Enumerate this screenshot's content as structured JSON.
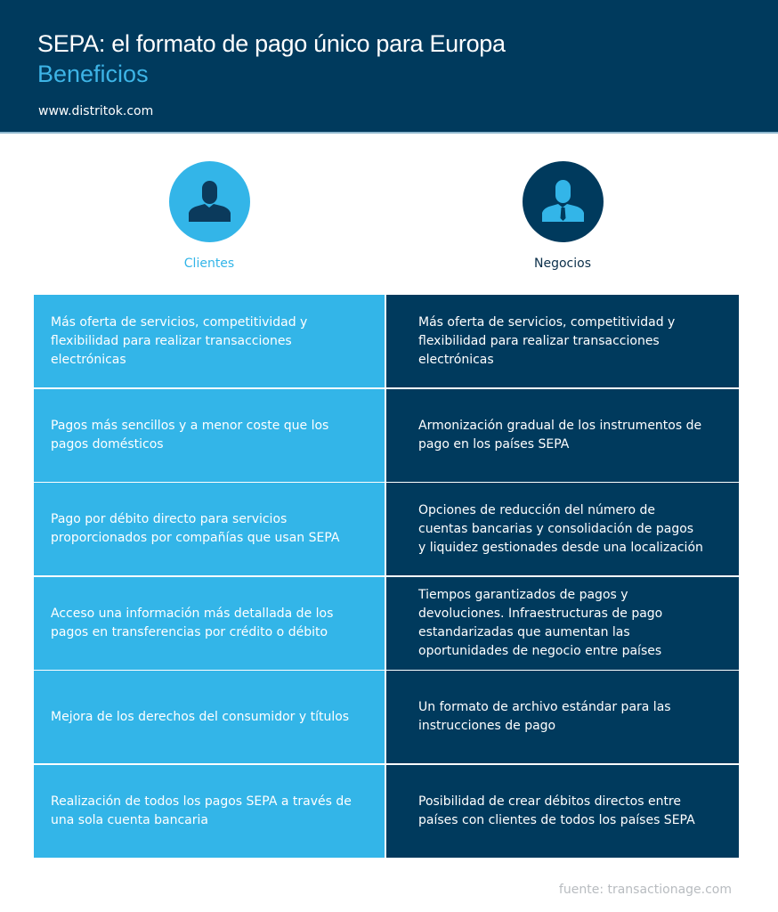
{
  "header": {
    "title": "SEPA: el formato de pago único para Europa",
    "subtitle": "Beneficios",
    "website": "www.distritok.com"
  },
  "columns": [
    {
      "label": "Clientes",
      "icon": "person-icon",
      "color": "#33b5e8"
    },
    {
      "label": "Negocios",
      "icon": "businessman-icon",
      "color": "#003a5d"
    }
  ],
  "rows": [
    {
      "clientes": "Más oferta de servicios, competitividad y flexibilidad para realizar transacciones electrónicas",
      "negocios": "Más oferta de servicios, competitividad y flexibilidad para realizar transacciones electrónicas"
    },
    {
      "clientes": "Pagos más sencillos y a menor coste que los pagos domésticos",
      "negocios": "Armonización gradual de los instrumentos de pago en los países SEPA"
    },
    {
      "clientes": "Pago por débito directo para servicios proporcionados por compañías que usan SEPA",
      "negocios": "Opciones de reducción del número de cuentas bancarias y consolidación de pagos y liquidez gestionades desde una localización"
    },
    {
      "clientes": "Acceso una información más detallada de los pagos en transferencias por crédito o débito",
      "negocios": "Tiempos garantizados de pagos y devoluciones. Infraestructuras de pago estandarizadas que aumentan las oportunidades de negocio entre países"
    },
    {
      "clientes": "Mejora de los derechos del consumidor y títulos",
      "negocios": "Un formato de archivo estándar para las instrucciones de pago"
    },
    {
      "clientes": "Realización de todos los pagos SEPA a través de una sola cuenta bancaria",
      "negocios": "Posibilidad de crear débitos directos entre países con clientes de todos los países SEPA"
    }
  ],
  "footer": {
    "source": "fuente: transactionage.com"
  }
}
